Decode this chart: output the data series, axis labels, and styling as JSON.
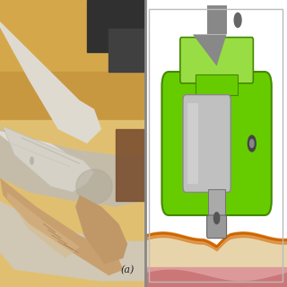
{
  "figure_width": 3.2,
  "figure_height": 3.2,
  "dpi": 100,
  "background_color": "#ffffff",
  "label_a": "(a)",
  "label_a_fontsize": 8,
  "green_main": "#66cc00",
  "green_light": "#aade66",
  "green_top": "#99dd44",
  "green_edge": "#448800",
  "gray_box": "#888888",
  "gray_light": "#bbbbbb",
  "gray_inner": "#aaaaaa",
  "gray_dark": "#555555",
  "gray_mid": "#999999",
  "orange_line": "#cc6600",
  "orange_fill": "#dd8833",
  "beige_tissue": "#e8d4aa",
  "pink_tissue": "#dd9999",
  "pink_dark": "#cc7777",
  "white": "#ffffff",
  "wood_light": "#d4a050",
  "wood_dark": "#b07830",
  "wood_top": "#c89040",
  "skin_tan": "#c8956a",
  "skin_light": "#dbb080",
  "shirt_color": "#d8d0c0",
  "shirt_dark": "#c0b8a8",
  "knee_color": "#c0b8a8",
  "shadow": "#a09080"
}
